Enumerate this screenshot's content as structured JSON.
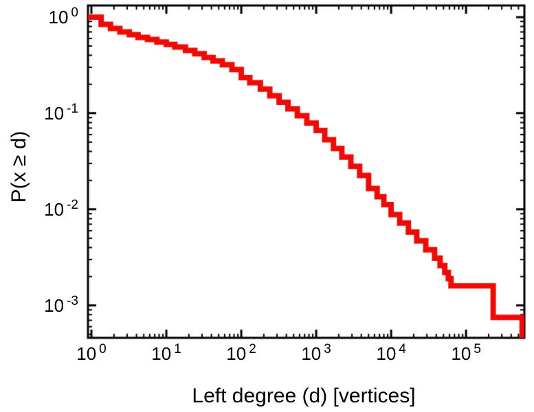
{
  "chart_data": {
    "type": "line",
    "style": "steps-post",
    "title": "",
    "xlabel": "Left degree (d) [vertices]",
    "ylabel": "P(x ≥ d)",
    "x_scale": "log",
    "y_scale": "log",
    "xlim": [
      0.9,
      600000
    ],
    "ylim": [
      0.00046,
      1.32
    ],
    "grid": false,
    "legend_position": "none",
    "tick_base": "10",
    "x_tick_exponents": [
      "0",
      "1",
      "2",
      "3",
      "4",
      "5"
    ],
    "y_tick_exponents": [
      "0",
      "-1",
      "-2",
      "-3"
    ],
    "line_color": "#ee0b07",
    "line_width": 8,
    "frame_color": "#000000",
    "background_color": "#ffffff",
    "points": [
      [
        1,
        1.0
      ],
      [
        1.35,
        0.84
      ],
      [
        1.8,
        0.76
      ],
      [
        2.4,
        0.7
      ],
      [
        3.2,
        0.655
      ],
      [
        4.2,
        0.615
      ],
      [
        5.6,
        0.585
      ],
      [
        7.5,
        0.55
      ],
      [
        10,
        0.52
      ],
      [
        13,
        0.487
      ],
      [
        18,
        0.45
      ],
      [
        24,
        0.415
      ],
      [
        32,
        0.38
      ],
      [
        42,
        0.35
      ],
      [
        56,
        0.32
      ],
      [
        75,
        0.285
      ],
      [
        100,
        0.235
      ],
      [
        130,
        0.207
      ],
      [
        180,
        0.178
      ],
      [
        240,
        0.152
      ],
      [
        320,
        0.13
      ],
      [
        420,
        0.111
      ],
      [
        560,
        0.094
      ],
      [
        750,
        0.079
      ],
      [
        1000,
        0.066
      ],
      [
        1300,
        0.053
      ],
      [
        1700,
        0.043
      ],
      [
        2200,
        0.035
      ],
      [
        2900,
        0.028
      ],
      [
        3800,
        0.0225
      ],
      [
        5000,
        0.0165
      ],
      [
        6500,
        0.0135
      ],
      [
        8000,
        0.0112
      ],
      [
        10000,
        0.0088
      ],
      [
        13000,
        0.0072
      ],
      [
        17000,
        0.0058
      ],
      [
        22000,
        0.0047
      ],
      [
        29000,
        0.0038
      ],
      [
        38000,
        0.0031
      ],
      [
        45000,
        0.0026
      ],
      [
        52000,
        0.0022
      ],
      [
        58000,
        0.0019
      ],
      [
        63000,
        0.0016
      ],
      [
        230000,
        0.00075
      ],
      [
        560000,
        0.00042
      ]
    ]
  }
}
